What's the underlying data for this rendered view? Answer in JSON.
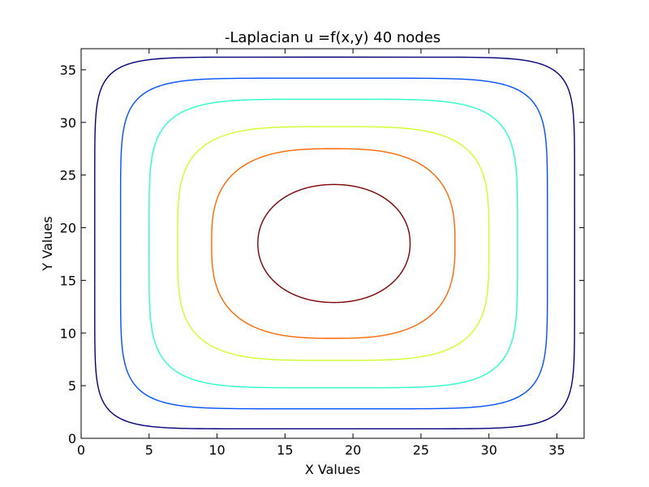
{
  "chart_data": {
    "type": "contour",
    "title": "-Laplacian u =f(x,y) 40 nodes",
    "xlabel": "X Values",
    "ylabel": "Y Values",
    "xlim": [
      0,
      37
    ],
    "ylim": [
      0,
      37
    ],
    "xticks": [
      0,
      5,
      10,
      15,
      20,
      25,
      30,
      35
    ],
    "yticks": [
      0,
      5,
      10,
      15,
      20,
      25,
      30,
      35
    ],
    "grid": false,
    "legend": "none",
    "center": [
      18.5,
      18.5
    ],
    "contours": [
      {
        "level_index": 0,
        "color": "#00007f",
        "x_min": 1.0,
        "x_max": 36.3,
        "y_min": 0.9,
        "y_max": 36.2,
        "squareness": 8.5
      },
      {
        "level_index": 1,
        "color": "#0050ff",
        "x_min": 2.9,
        "x_max": 34.3,
        "y_min": 2.8,
        "y_max": 34.2,
        "squareness": 6.5
      },
      {
        "level_index": 2,
        "color": "#29ffce",
        "x_min": 5.0,
        "x_max": 32.1,
        "y_min": 4.8,
        "y_max": 32.2,
        "squareness": 5.0
      },
      {
        "level_index": 3,
        "color": "#ceff29",
        "x_min": 7.1,
        "x_max": 30.0,
        "y_min": 7.4,
        "y_max": 29.6,
        "squareness": 3.8
      },
      {
        "level_index": 4,
        "color": "#ff6800",
        "x_min": 9.6,
        "x_max": 27.5,
        "y_min": 9.5,
        "y_max": 27.5,
        "squareness": 2.8
      },
      {
        "level_index": 5,
        "color": "#7f0000",
        "x_min": 13.0,
        "x_max": 24.2,
        "y_min": 12.9,
        "y_max": 24.1,
        "squareness": 2.1
      }
    ]
  }
}
